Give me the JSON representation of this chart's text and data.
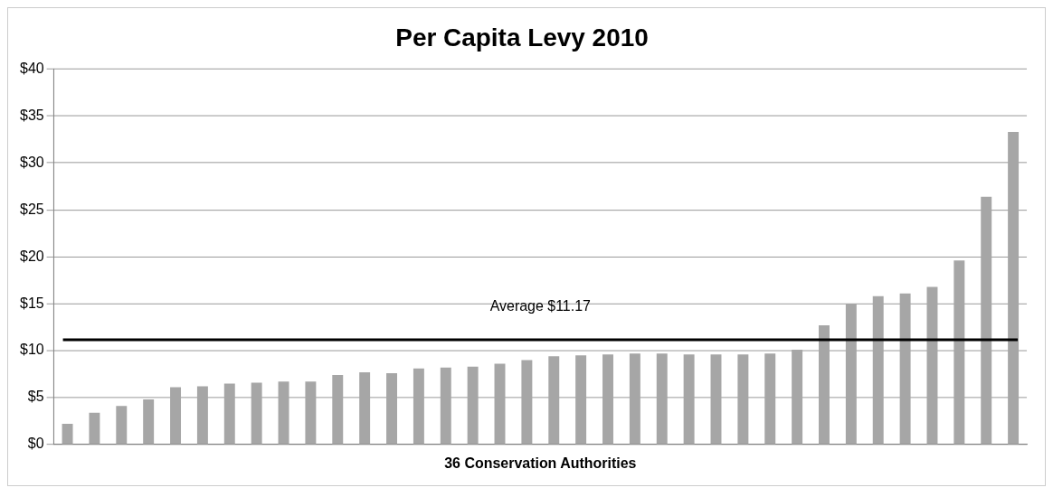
{
  "chart_data": {
    "type": "bar",
    "title": "Per Capita Levy 2010",
    "xlabel": "36 Conservation Authorities",
    "categories": [
      null,
      null,
      null,
      null,
      null,
      null,
      null,
      null,
      null,
      null,
      null,
      null,
      null,
      null,
      null,
      null,
      null,
      null,
      null,
      null,
      null,
      null,
      null,
      null,
      null,
      null,
      null,
      null,
      null,
      null,
      null,
      null,
      null,
      null,
      null,
      null
    ],
    "values": [
      2.2,
      3.4,
      4.1,
      4.8,
      6.1,
      6.2,
      6.5,
      6.6,
      6.7,
      6.7,
      7.4,
      7.7,
      7.6,
      8.1,
      8.2,
      8.3,
      8.6,
      9.0,
      9.4,
      9.5,
      9.6,
      9.7,
      9.7,
      9.6,
      9.6,
      9.6,
      9.7,
      10.1,
      12.7,
      15.0,
      15.8,
      16.1,
      16.8,
      19.6,
      26.4,
      33.3
    ],
    "color": "#a6a6a6",
    "ylim": [
      0,
      40
    ],
    "yticks": [
      {
        "value": 0,
        "label": "$0"
      },
      {
        "value": 5,
        "label": "$5"
      },
      {
        "value": 10,
        "label": "$10"
      },
      {
        "value": 15,
        "label": "$15"
      },
      {
        "value": 20,
        "label": "$20"
      },
      {
        "value": 25,
        "label": "$25"
      },
      {
        "value": 30,
        "label": "$30"
      },
      {
        "value": 35,
        "label": "$35"
      },
      {
        "value": 40,
        "label": "$40"
      }
    ],
    "ref_lines": [
      {
        "axis": "y",
        "value": 11.17,
        "label": "Average $11.17",
        "color": "#000000"
      }
    ],
    "grid": "y",
    "legend": false
  }
}
